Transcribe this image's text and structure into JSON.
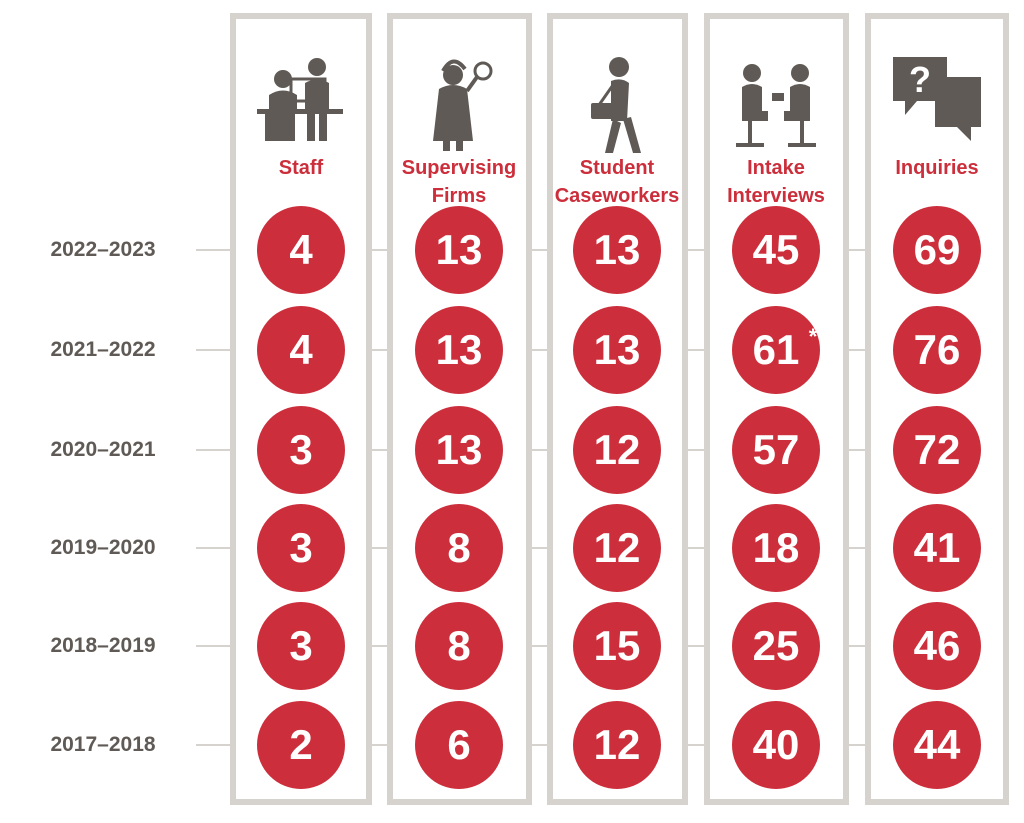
{
  "chart_data": {
    "type": "table",
    "years": [
      "2022–2023",
      "2021–2022",
      "2020–2021",
      "2019–2020",
      "2018–2019",
      "2017–2018"
    ],
    "columns": [
      {
        "label": "Staff",
        "icon": "staff-icon",
        "values": [
          "4",
          "4",
          "3",
          "3",
          "3",
          "2"
        ]
      },
      {
        "label": "Supervising\nFirms",
        "icon": "supervising-firms-icon",
        "values": [
          "13",
          "13",
          "13",
          "8",
          "8",
          "6"
        ]
      },
      {
        "label": "Student\nCaseworkers",
        "icon": "student-caseworker-icon",
        "values": [
          "13",
          "13",
          "12",
          "12",
          "15",
          "12"
        ]
      },
      {
        "label": "Intake\nInterviews",
        "icon": "intake-interview-icon",
        "values": [
          "45",
          "61",
          "57",
          "18",
          "25",
          "40"
        ]
      },
      {
        "label": "Inquiries",
        "icon": "inquiries-icon",
        "values": [
          "69",
          "76",
          "72",
          "41",
          "46",
          "44"
        ]
      }
    ],
    "footnote_marks": [
      {
        "column": 3,
        "row": 1,
        "mark": "*"
      }
    ],
    "colors": {
      "accent": "#cc2f3b",
      "frame": "#d6d2cd",
      "icon": "#5f5a55",
      "year_text": "#5f5a55"
    }
  }
}
